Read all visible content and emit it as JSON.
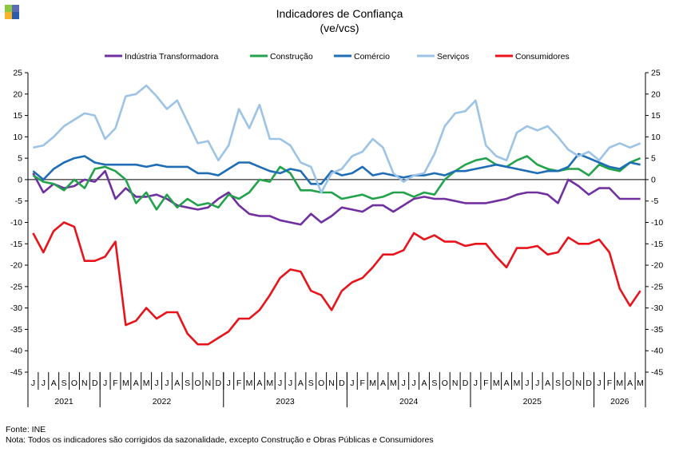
{
  "logo": {
    "colors": [
      "#8DC63F",
      "#5B6BB5",
      "#F7B32B",
      "#2E5BAA"
    ]
  },
  "header": {
    "title": "Indicadores de Confiança",
    "subtitle": "(ve/vcs)"
  },
  "footer": {
    "source": "Fonte: INE",
    "note": "Nota: Todos os indicadores são corrigidos da sazonalidade,  excepto Construção e Obras Públicas e Consumidores"
  },
  "chart_data": {
    "type": "line",
    "ylim": [
      -45,
      25
    ],
    "yticks": [
      25,
      20,
      15,
      10,
      5,
      0,
      -5,
      -10,
      -15,
      -20,
      -25,
      -30,
      -35,
      -40,
      -45
    ],
    "grid": false,
    "legend_position": "top",
    "month_labels": [
      "J",
      "J",
      "A",
      "S",
      "O",
      "N",
      "D",
      "J",
      "F",
      "M",
      "A",
      "M",
      "J",
      "J",
      "A",
      "S",
      "O",
      "N",
      "D",
      "J",
      "F",
      "M",
      "A",
      "M",
      "J",
      "J",
      "A",
      "S",
      "O",
      "N",
      "D",
      "J",
      "F",
      "M",
      "A",
      "M",
      "J",
      "J",
      "A",
      "S",
      "O",
      "N",
      "D",
      "J",
      "F",
      "M",
      "A",
      "M",
      "J",
      "J",
      "A",
      "S",
      "O",
      "N",
      "D",
      "J",
      "F",
      "M",
      "A",
      "M"
    ],
    "year_groups": [
      {
        "label": "2021",
        "count": 7
      },
      {
        "label": "2022",
        "count": 12
      },
      {
        "label": "2023",
        "count": 12
      },
      {
        "label": "2024",
        "count": 12
      },
      {
        "label": "2025",
        "count": 12
      },
      {
        "label": "2026",
        "count": 5
      }
    ],
    "series": [
      {
        "name": "Indústria Transformadora",
        "color": "#7030A0",
        "values": [
          1.5,
          -3,
          -1,
          -2,
          -1.5,
          0,
          -0.5,
          2,
          -4.5,
          -2,
          -4,
          -4,
          -3.5,
          -4.5,
          -6,
          -6.5,
          -7,
          -6.5,
          -4.5,
          -3,
          -6,
          -8,
          -8.5,
          -8.5,
          -9.5,
          -10,
          -10.5,
          -8,
          -10,
          -8.5,
          -6.5,
          -7,
          -7.5,
          -6,
          -6,
          -7.5,
          -6,
          -4.5,
          -4,
          -4.5,
          -4.5,
          -5,
          -5.5,
          -5.5,
          -5.5,
          -5,
          -4.5,
          -3.5,
          -3,
          -3,
          -3.5,
          -5.5,
          0,
          -1.5,
          -3.5,
          -2,
          -2,
          -4.5,
          -4.5,
          -4.5
        ]
      },
      {
        "name": "Construção",
        "color": "#22A34B",
        "values": [
          1,
          -0.5,
          -1,
          -2.5,
          0,
          -2,
          2.5,
          3,
          2,
          0,
          -5.5,
          -3,
          -7,
          -3.5,
          -6.5,
          -4.5,
          -6,
          -5.5,
          -6.5,
          -3.5,
          -4.5,
          -3,
          0,
          -0.5,
          3,
          1.5,
          -2.5,
          -2.5,
          -3,
          -3,
          -4.5,
          -4,
          -3.5,
          -4.5,
          -4,
          -3,
          -3,
          -4,
          -3,
          -3.5,
          0,
          2,
          3.5,
          4.5,
          5,
          3.5,
          3,
          4.5,
          5.5,
          3.5,
          2.5,
          2,
          2.5,
          2.5,
          1,
          3.5,
          2.5,
          2,
          4,
          5
        ]
      },
      {
        "name": "Comércio",
        "color": "#1F6DB5",
        "values": [
          2,
          0,
          2.5,
          4,
          5,
          5.5,
          4,
          3.5,
          3.5,
          3.5,
          3.5,
          3,
          3.5,
          3,
          3,
          3,
          1.5,
          1.5,
          1,
          2.5,
          4,
          4,
          3,
          2,
          1.5,
          2.5,
          2,
          -1,
          -1,
          2,
          1,
          1.5,
          3,
          1,
          1.5,
          1,
          0.5,
          1,
          1,
          1.5,
          1,
          2,
          2,
          2.5,
          3,
          3.5,
          3,
          2.5,
          2,
          1.5,
          2,
          2,
          3,
          6,
          5,
          4,
          3,
          2.5,
          4,
          3.5
        ]
      },
      {
        "name": "Serviços",
        "color": "#9DC3E6",
        "values": [
          7.5,
          8,
          10,
          12.5,
          14,
          15.5,
          15,
          9.5,
          12,
          19.5,
          20,
          22,
          19.5,
          16.5,
          18.5,
          13.5,
          8.5,
          9,
          4.5,
          8,
          16.5,
          12,
          17.5,
          9.5,
          9.5,
          8,
          4,
          3,
          -3,
          1.5,
          2.5,
          5.5,
          6.5,
          9.5,
          7.5,
          1.5,
          -0.5,
          1,
          1.5,
          6,
          12.5,
          15.5,
          16,
          18.5,
          8,
          5.5,
          4.5,
          11,
          12.5,
          11.5,
          12.5,
          10,
          7,
          5.5,
          6.5,
          4.5,
          7.5,
          8.5,
          7.5,
          8.5
        ]
      },
      {
        "name": "Consumidores",
        "color": "#E8141B",
        "values": [
          -12.5,
          -17,
          -12,
          -10,
          -11,
          -19,
          -19,
          -18,
          -14.5,
          -34,
          -33,
          -30,
          -32.5,
          -31,
          -31,
          -36,
          -38.5,
          -38.5,
          -37,
          -35.5,
          -32.5,
          -32.5,
          -30.5,
          -27,
          -23,
          -21,
          -21.5,
          -26,
          -27,
          -30.5,
          -26,
          -24,
          -23,
          -20.5,
          -17.5,
          -17.5,
          -16.5,
          -12.5,
          -14,
          -13,
          -14.5,
          -14.5,
          -15.5,
          -15,
          -15,
          -18,
          -20.5,
          -16,
          -16,
          -15.5,
          -17.5,
          -17,
          -13.5,
          -15,
          -15,
          -14,
          -17,
          -25.5,
          -29.5,
          -26
        ]
      }
    ]
  }
}
